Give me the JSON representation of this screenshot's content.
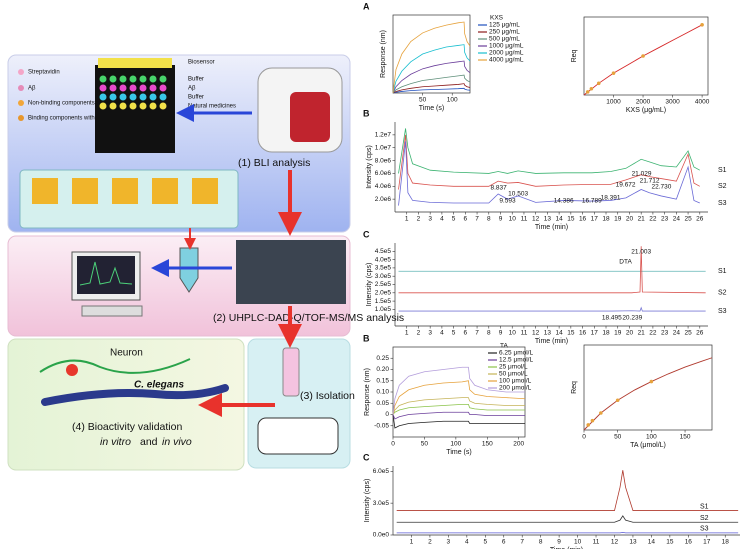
{
  "chart_data": [
    {
      "type": "line",
      "panel_label": "A",
      "x_label": "Time (s)",
      "y_label": "Response (nm)",
      "legend_title": "KXS",
      "xlim": [
        0,
        130
      ],
      "xticks": [
        50,
        100
      ],
      "ylim": [
        0,
        1
      ],
      "x": [
        0,
        5,
        15,
        30,
        50,
        70,
        90,
        110,
        120,
        121,
        125,
        130
      ],
      "series": [
        {
          "name": "125 μg/mL",
          "color": "#1f4fbf",
          "values": [
            0,
            0.01,
            0.02,
            0.03,
            0.04,
            0.045,
            0.05,
            0.055,
            0.06,
            0.05,
            0.04,
            0.035
          ]
        },
        {
          "name": "250 μg/mL",
          "color": "#8b1a1a",
          "values": [
            0,
            0.02,
            0.04,
            0.06,
            0.08,
            0.09,
            0.1,
            0.11,
            0.12,
            0.1,
            0.08,
            0.07
          ]
        },
        {
          "name": "500 μg/mL",
          "color": "#5f8f7a",
          "values": [
            0,
            0.04,
            0.08,
            0.12,
            0.16,
            0.18,
            0.2,
            0.22,
            0.23,
            0.19,
            0.16,
            0.14
          ]
        },
        {
          "name": "1000 μg/mL",
          "color": "#6a3d9a",
          "values": [
            0,
            0.08,
            0.16,
            0.24,
            0.31,
            0.35,
            0.38,
            0.4,
            0.41,
            0.34,
            0.29,
            0.26
          ]
        },
        {
          "name": "2000 μg/mL",
          "color": "#17becf",
          "values": [
            0,
            0.15,
            0.28,
            0.4,
            0.5,
            0.55,
            0.59,
            0.61,
            0.62,
            0.52,
            0.45,
            0.41
          ]
        },
        {
          "name": "4000 μg/mL",
          "color": "#e6a23c",
          "values": [
            0,
            0.3,
            0.5,
            0.66,
            0.77,
            0.83,
            0.87,
            0.9,
            0.91,
            0.76,
            0.66,
            0.6
          ]
        }
      ]
    },
    {
      "type": "scatter",
      "x_label": "KXS (μg/mL)",
      "y_label": "Req",
      "xlim": [
        0,
        4200
      ],
      "xticks": [
        1000,
        2000,
        3000,
        4000
      ],
      "ylim": [
        0,
        1
      ],
      "x": [
        125,
        250,
        500,
        1000,
        2000,
        4000
      ],
      "values": [
        0.04,
        0.08,
        0.15,
        0.28,
        0.5,
        0.9
      ],
      "color": "#e6a23c",
      "fit": {
        "color": "#d62728",
        "x": [
          0,
          500,
          1000,
          1500,
          2000,
          2500,
          3000,
          3500,
          4000
        ],
        "values": [
          0,
          0.15,
          0.28,
          0.39,
          0.5,
          0.6,
          0.7,
          0.8,
          0.9
        ]
      }
    },
    {
      "type": "line",
      "panel_label": "B",
      "x_label": "Time (min)",
      "y_label": "Intensity (cps)",
      "xlim": [
        0,
        26.7
      ],
      "xticks": [
        1,
        2,
        3,
        4,
        5,
        6,
        7,
        8,
        9,
        10,
        11,
        12,
        13,
        14,
        15,
        16,
        17,
        18,
        19,
        20,
        21,
        22,
        23,
        24,
        25,
        26
      ],
      "ylim": [
        0,
        14000000
      ],
      "yticks": [
        {
          "value": 2000000,
          "label": "2.0e6"
        },
        {
          "value": 4000000,
          "label": "4.0e6"
        },
        {
          "value": 6000000,
          "label": "6.0e6"
        },
        {
          "value": 8000000,
          "label": "8.0e6"
        },
        {
          "value": 10000000,
          "label": "1.0e7"
        },
        {
          "value": 12000000,
          "label": "1.2e7"
        }
      ],
      "x": [
        0.3,
        0.9,
        1.1,
        1.5,
        3,
        5,
        8,
        8.8,
        9.6,
        10.5,
        12,
        14.4,
        16.8,
        18.4,
        19.7,
        21,
        21.7,
        22.7,
        24,
        25,
        25.5,
        26
      ],
      "series": [
        {
          "name": "S1",
          "color": "#3cb371",
          "values": [
            6000000,
            13000000,
            10000000,
            7500000,
            6500000,
            6200000,
            6000000,
            6300000,
            6000000,
            6400000,
            6000000,
            6100000,
            6100000,
            6300000,
            6800000,
            8200000,
            7800000,
            7200000,
            7000000,
            9500000,
            7000000,
            6500000
          ]
        },
        {
          "name": "S2",
          "color": "#d9534f",
          "values": [
            3500000,
            12000000,
            6000000,
            4500000,
            4200000,
            4000000,
            4000000,
            4800000,
            4500000,
            4600000,
            4000000,
            4200000,
            4300000,
            4300000,
            5000000,
            5800000,
            5500000,
            5200000,
            4800000,
            9000000,
            4500000,
            4000000
          ]
        },
        {
          "name": "S3",
          "color": "#6a6ad6",
          "values": [
            1000000,
            11000000,
            3000000,
            1800000,
            1500000,
            1400000,
            1400000,
            2800000,
            2000000,
            2500000,
            1500000,
            1800000,
            1700000,
            1800000,
            2200000,
            3500000,
            3000000,
            2500000,
            2000000,
            7000000,
            1800000,
            1400000
          ]
        }
      ],
      "peak_labels": [
        8.837,
        10.503,
        9.593,
        14.386,
        16.789,
        18.391,
        19.672,
        21.029,
        21.712,
        {
          "value": 22.73,
          "label": "22.730"
        }
      ]
    },
    {
      "type": "line",
      "panel_label": "C",
      "x_label": "Time (min)",
      "y_label": "Intensity (cps)",
      "annotation": "DTA",
      "xlim": [
        0,
        26.7
      ],
      "xticks": [
        1,
        2,
        3,
        4,
        5,
        6,
        7,
        8,
        9,
        10,
        11,
        12,
        13,
        14,
        15,
        16,
        17,
        18,
        19,
        20,
        21,
        22,
        23,
        24,
        25,
        26
      ],
      "ylim": [
        0,
        500000
      ],
      "yticks": [
        {
          "value": 100000,
          "label": "1.0e5"
        },
        {
          "value": 150000,
          "label": "1.5e5"
        },
        {
          "value": 200000,
          "label": "2.0e5"
        },
        {
          "value": 250000,
          "label": "2.5e5"
        },
        {
          "value": 300000,
          "label": "3.0e5"
        },
        {
          "value": 350000,
          "label": "3.5e5"
        },
        {
          "value": 400000,
          "label": "4.0e5"
        },
        {
          "value": 450000,
          "label": "4.5e5"
        }
      ],
      "x": [
        0.3,
        18.5,
        20.2,
        20.9,
        21.0,
        21.1,
        26.5
      ],
      "series": [
        {
          "name": "S1",
          "color": "#5fb3b3",
          "values": [
            330000,
            330000,
            330000,
            330000,
            330000,
            330000,
            330000
          ]
        },
        {
          "name": "S2",
          "color": "#d9534f",
          "values": [
            200000,
            200000,
            200000,
            205000,
            480000,
            205000,
            200000
          ]
        },
        {
          "name": "S3",
          "color": "#7b7bd6",
          "values": [
            90000,
            90000,
            92000,
            90000,
            110000,
            90000,
            90000
          ]
        }
      ],
      "peak_labels": [
        21.003,
        18.495,
        20.239
      ]
    },
    {
      "type": "line",
      "panel_label": "B",
      "x_label": "Time (s)",
      "y_label": "Response (nm)",
      "legend_title": "TA",
      "xlim": [
        0,
        210
      ],
      "xticks": [
        0,
        50,
        100,
        150,
        200
      ],
      "ylim": [
        -0.1,
        0.3
      ],
      "yticks": [
        -0.05,
        0,
        0.05,
        {
          "value": 0.1,
          "label": "0.10"
        },
        0.15,
        {
          "value": 0.2,
          "label": "0.20"
        },
        0.25
      ],
      "x": [
        0,
        3,
        10,
        25,
        50,
        80,
        110,
        120,
        122,
        130,
        150,
        180,
        210
      ],
      "series": [
        {
          "name": "6.25 μmol/L",
          "color": "#222222",
          "values": [
            0,
            -0.06,
            -0.05,
            -0.04,
            -0.035,
            -0.03,
            -0.03,
            -0.03,
            -0.04,
            -0.04,
            -0.04,
            -0.04,
            -0.04
          ]
        },
        {
          "name": "12.5 μmol/L",
          "color": "#6a3d9a",
          "values": [
            0,
            -0.02,
            -0.01,
            0,
            0.005,
            0.01,
            0.01,
            0.01,
            0,
            0,
            -0.005,
            -0.005,
            -0.005
          ]
        },
        {
          "name": "25 μmol/L",
          "color": "#8bc34a",
          "values": [
            0,
            0.01,
            0.02,
            0.03,
            0.035,
            0.04,
            0.045,
            0.045,
            0.03,
            0.025,
            0.02,
            0.02,
            0.02
          ]
        },
        {
          "name": "50 μmol/L",
          "color": "#c5b358",
          "values": [
            0,
            0.02,
            0.04,
            0.055,
            0.065,
            0.07,
            0.075,
            0.075,
            0.06,
            0.05,
            0.045,
            0.04,
            0.04
          ]
        },
        {
          "name": "100 μmol/L",
          "color": "#e6a23c",
          "values": [
            0,
            0.04,
            0.08,
            0.11,
            0.13,
            0.14,
            0.145,
            0.15,
            0.11,
            0.09,
            0.08,
            0.075,
            0.07
          ]
        },
        {
          "name": "200 μmol/L",
          "color": "#b39ddb",
          "values": [
            0,
            0.07,
            0.13,
            0.17,
            0.19,
            0.2,
            0.21,
            0.21,
            0.16,
            0.13,
            0.11,
            0.1,
            0.1
          ]
        }
      ]
    },
    {
      "type": "scatter",
      "x_label": "TA (μmol/L)",
      "y_label": "Req",
      "xlim": [
        0,
        190
      ],
      "xticks": [
        0,
        50,
        100,
        150
      ],
      "ylim": [
        0,
        1
      ],
      "x": [
        6.25,
        12.5,
        25,
        50,
        100
      ],
      "values": [
        0.06,
        0.11,
        0.2,
        0.35,
        0.57
      ],
      "color": "#e6a23c",
      "fit": {
        "color": "#b03a2e",
        "x": [
          0,
          25,
          50,
          75,
          100,
          125,
          150,
          175,
          190
        ],
        "values": [
          0,
          0.2,
          0.35,
          0.47,
          0.57,
          0.66,
          0.74,
          0.81,
          0.85
        ]
      }
    },
    {
      "type": "line",
      "panel_label": "C",
      "x_label": "Time (min)",
      "y_label": "Intensity (cps)",
      "xlim": [
        0,
        18.8
      ],
      "xticks": [
        1,
        2,
        3,
        4,
        5,
        6,
        7,
        8,
        9,
        10,
        11,
        12,
        13,
        14,
        15,
        16,
        17,
        18
      ],
      "ylim": [
        0,
        650000
      ],
      "yticks": [
        {
          "value": 0,
          "label": "0.0e0"
        },
        {
          "value": 300000,
          "label": "3.0e5"
        },
        {
          "value": 600000,
          "label": "6.0e5"
        }
      ],
      "x": [
        0.2,
        12.0,
        12.3,
        12.45,
        12.6,
        13.0,
        18.7
      ],
      "series": [
        {
          "name": "S1",
          "color": "#b03a2e",
          "values": [
            230000,
            230000,
            450000,
            610000,
            450000,
            230000,
            230000
          ]
        },
        {
          "name": "S2",
          "color": "#333333",
          "values": [
            120000,
            120000,
            140000,
            180000,
            140000,
            120000,
            120000
          ]
        },
        {
          "name": "S3",
          "color": "#5b5bd6",
          "values": [
            20000,
            20000,
            20000,
            25000,
            20000,
            20000,
            20000
          ]
        }
      ]
    }
  ],
  "schematic": {
    "legend": [
      "Streptavidin",
      "Aβ",
      "Non-binding components with Aβ",
      "Binding components with Aβ"
    ],
    "plate_labels": [
      "Biosensor",
      "Buffer",
      "Aβ",
      "Buffer",
      "Natural medicines"
    ],
    "steps": [
      "(1) BLI analysis",
      "(2) UHPLC-DAD-Q/TOF-MS/MS analysis",
      "(3) Isolation"
    ],
    "neuron": "Neuron",
    "organism": "C. elegans",
    "validation": "(4) Bioactivity validation",
    "validation_note": [
      "in vitro",
      "and",
      "in vivo"
    ]
  }
}
